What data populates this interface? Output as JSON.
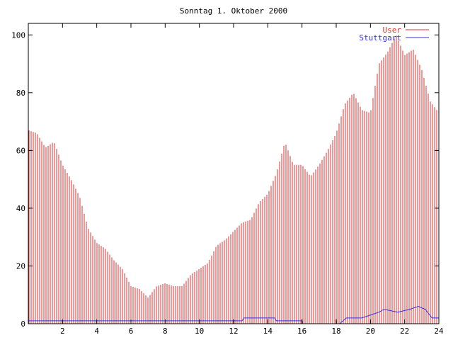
{
  "chart_data": {
    "type": "bar",
    "title": "Sonntag 1. Oktober 2000",
    "xlabel": "",
    "ylabel": "",
    "xlim": [
      0,
      24
    ],
    "ylim": [
      0,
      104
    ],
    "x_ticks": [
      2,
      4,
      6,
      8,
      10,
      12,
      14,
      16,
      18,
      20,
      22,
      24
    ],
    "y_ticks": [
      0,
      20,
      40,
      60,
      80,
      100
    ],
    "grid": false,
    "legend_position": "top-right",
    "colors": {
      "User": "#e03030",
      "Stuttgart": "#3030e0"
    },
    "series": [
      {
        "name": "User",
        "kind": "bar",
        "x": [
          0.0,
          0.5,
          1.0,
          1.5,
          2.0,
          2.5,
          3.0,
          3.5,
          4.0,
          4.5,
          5.0,
          5.5,
          6.0,
          6.5,
          7.0,
          7.5,
          8.0,
          8.5,
          9.0,
          9.5,
          10.0,
          10.5,
          11.0,
          11.5,
          12.0,
          12.5,
          13.0,
          13.5,
          14.0,
          14.5,
          15.0,
          15.5,
          16.0,
          16.5,
          17.0,
          17.5,
          18.0,
          18.5,
          19.0,
          19.5,
          20.0,
          20.5,
          21.0,
          21.5,
          22.0,
          22.5,
          23.0,
          23.5,
          24.0
        ],
        "values": [
          67,
          66,
          61,
          63,
          55,
          50,
          44,
          33,
          28,
          26,
          22,
          19,
          13,
          12,
          9,
          13,
          14,
          13,
          13,
          17,
          19,
          21,
          27,
          29,
          32,
          35,
          36,
          42,
          45,
          52,
          63,
          55,
          55,
          51,
          55,
          60,
          66,
          76,
          80,
          74,
          73,
          90,
          94,
          100,
          93,
          95,
          88,
          77,
          73
        ]
      },
      {
        "name": "Stuttgart",
        "kind": "line",
        "x": [
          0.0,
          12.5,
          12.6,
          14.4,
          14.5,
          16.0,
          16.05,
          18.2,
          18.6,
          19.5,
          20.0,
          20.5,
          20.8,
          21.6,
          22.3,
          22.8,
          23.2,
          23.6,
          24.0
        ],
        "values": [
          1,
          1,
          2,
          2,
          1,
          1,
          0,
          0,
          2,
          2,
          3,
          4,
          5,
          4,
          5,
          6,
          5,
          2,
          2
        ]
      }
    ]
  }
}
